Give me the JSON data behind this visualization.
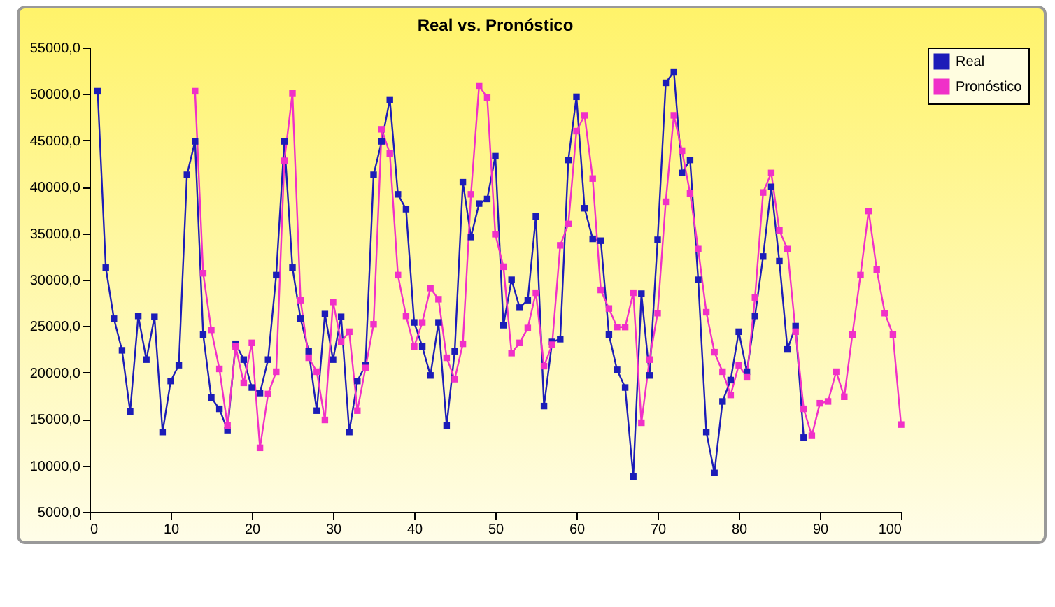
{
  "chart_data": {
    "type": "line",
    "title": "Real vs. Pronóstico",
    "xlim": [
      0,
      100
    ],
    "xticks": [
      0,
      10,
      20,
      30,
      40,
      50,
      60,
      70,
      80,
      90,
      100
    ],
    "ylim": [
      5000,
      55000
    ],
    "yticks": [
      {
        "value": 5000,
        "label": "5000,0"
      },
      {
        "value": 10000,
        "label": "10000,0"
      },
      {
        "value": 15000,
        "label": "15000,0"
      },
      {
        "value": 20000,
        "label": "20000,0"
      },
      {
        "value": 25000,
        "label": "25000,0"
      },
      {
        "value": 30000,
        "label": "30000,0"
      },
      {
        "value": 35000,
        "label": "35000,0"
      },
      {
        "value": 40000,
        "label": "40000,0"
      },
      {
        "value": 45000,
        "label": "45000,0"
      },
      {
        "value": 50000,
        "label": "50000,0"
      },
      {
        "value": 55000,
        "label": "55000,0"
      }
    ],
    "grid": false,
    "legend": "right",
    "marker": "square",
    "line_style": "solid",
    "series": [
      {
        "name": "Real",
        "color": "#1c1cb8",
        "x": [
          1,
          2,
          3,
          4,
          5,
          6,
          7,
          8,
          9,
          10,
          11,
          12,
          13,
          14,
          15,
          16,
          17,
          18,
          19,
          20,
          21,
          22,
          23,
          24,
          25,
          26,
          27,
          28,
          29,
          30,
          31,
          32,
          33,
          34,
          35,
          36,
          37,
          38,
          39,
          40,
          41,
          42,
          43,
          44,
          45,
          46,
          47,
          48,
          49,
          50,
          51,
          52,
          53,
          54,
          55,
          56,
          57,
          58,
          59,
          60,
          61,
          62,
          63,
          64,
          65,
          66,
          67,
          68,
          69,
          70,
          71,
          72,
          73,
          74,
          75,
          76,
          77,
          78,
          79,
          80,
          81,
          82,
          83,
          84,
          85,
          86,
          87,
          88
        ],
        "values": [
          50300,
          31300,
          25800,
          22400,
          15800,
          26100,
          21400,
          26000,
          13600,
          19100,
          20800,
          41300,
          44900,
          24100,
          17300,
          16100,
          13800,
          23100,
          21400,
          18400,
          17800,
          21400,
          30500,
          44900,
          31300,
          25800,
          22300,
          15900,
          26300,
          21400,
          26000,
          13600,
          19100,
          20800,
          41300,
          44900,
          49400,
          39200,
          37600,
          25400,
          22800,
          19700,
          25400,
          14300,
          22300,
          40500,
          34600,
          38200,
          38700,
          43300,
          25100,
          30000,
          27000,
          27800,
          36800,
          16400,
          23300,
          23600,
          42900,
          49700,
          37700,
          34400,
          34200,
          24100,
          20300,
          18400,
          8800,
          28500,
          19700,
          34300,
          51200,
          52400,
          41500,
          42900,
          30000,
          13600,
          9200,
          16900,
          19200,
          24400,
          20100,
          26100,
          32500,
          40000,
          32000,
          22500,
          25000,
          13000
        ]
      },
      {
        "name": "Pronóstico",
        "color": "#f030c8",
        "x": [
          13,
          14,
          15,
          16,
          17,
          18,
          19,
          20,
          21,
          22,
          23,
          24,
          25,
          26,
          27,
          28,
          29,
          30,
          31,
          32,
          33,
          34,
          35,
          36,
          37,
          38,
          39,
          40,
          41,
          42,
          43,
          44,
          45,
          46,
          47,
          48,
          49,
          50,
          51,
          52,
          53,
          54,
          55,
          56,
          57,
          58,
          59,
          60,
          61,
          62,
          63,
          64,
          65,
          66,
          67,
          68,
          69,
          70,
          71,
          72,
          73,
          74,
          75,
          76,
          77,
          78,
          79,
          80,
          81,
          82,
          83,
          84,
          85,
          86,
          87,
          88,
          89,
          90,
          91,
          92,
          93,
          94,
          95,
          96,
          97,
          98,
          99,
          100
        ],
        "values": [
          50300,
          30700,
          24600,
          20400,
          14300,
          22800,
          18900,
          23200,
          11900,
          17700,
          20100,
          42800,
          50100,
          27800,
          21600,
          20100,
          14900,
          27600,
          23300,
          24400,
          15900,
          20500,
          25200,
          46200,
          43600,
          30500,
          26100,
          22800,
          25400,
          29100,
          27900,
          21600,
          19300,
          23100,
          39200,
          50900,
          49600,
          34900,
          31400,
          22100,
          23200,
          24800,
          28600,
          20700,
          23000,
          33700,
          36000,
          46000,
          47700,
          40900,
          28900,
          26900,
          24900,
          24900,
          28600,
          14600,
          21400,
          26400,
          38400,
          47700,
          43900,
          39300,
          33300,
          26500,
          22200,
          20100,
          17600,
          20800,
          19500,
          28100,
          39400,
          41500,
          35300,
          33300,
          24400,
          16100,
          13200,
          16700,
          16900,
          20100,
          17400,
          24100,
          30500,
          37400,
          31100,
          26400,
          24100,
          14400
        ]
      }
    ]
  }
}
